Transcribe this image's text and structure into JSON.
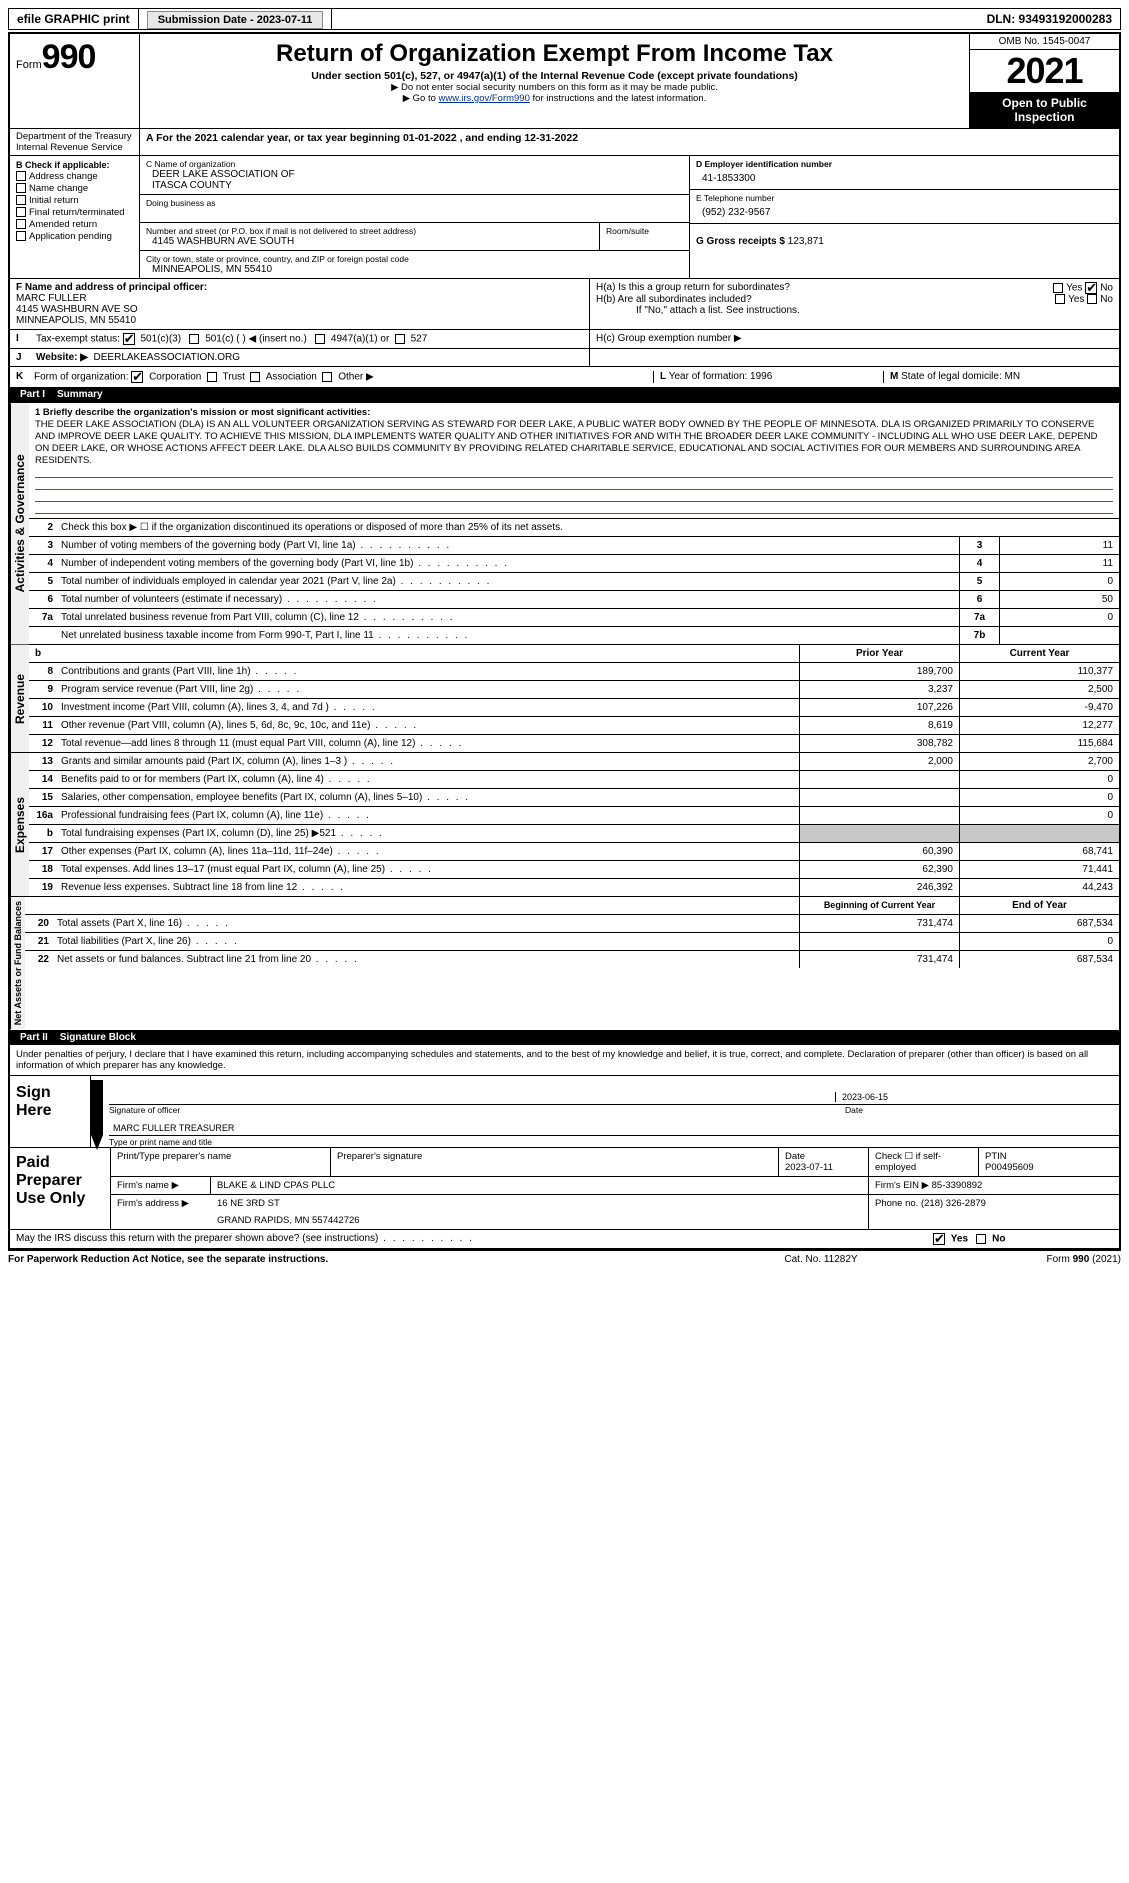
{
  "topbar": {
    "efile": "efile GRAPHIC print",
    "submission_label": "Submission Date - 2023-07-11",
    "dln": "DLN: 93493192000283"
  },
  "header": {
    "form_label": "Form",
    "form_number": "990",
    "title": "Return of Organization Exempt From Income Tax",
    "subtitle": "Under section 501(c), 527, or 4947(a)(1) of the Internal Revenue Code (except private foundations)",
    "note1": "▶ Do not enter social security numbers on this form as it may be made public.",
    "note2_pre": "▶ Go to ",
    "note2_link": "www.irs.gov/Form990",
    "note2_post": " for instructions and the latest information.",
    "omb": "OMB No. 1545-0047",
    "year": "2021",
    "open": "Open to Public Inspection",
    "dept": "Department of the Treasury",
    "irs": "Internal Revenue Service"
  },
  "line_a": "A For the 2021 calendar year, or tax year beginning 01-01-2022   , and ending 12-31-2022",
  "box_b": {
    "header": "B Check if applicable:",
    "items": [
      "Address change",
      "Name change",
      "Initial return",
      "Final return/terminated",
      "Amended return",
      "Application pending"
    ]
  },
  "box_c": {
    "label": "C Name of organization",
    "name1": "DEER LAKE ASSOCIATION OF",
    "name2": "ITASCA COUNTY",
    "dba_label": "Doing business as",
    "street_label": "Number and street (or P.O. box if mail is not delivered to street address)",
    "room_label": "Room/suite",
    "street": "4145 WASHBURN AVE SOUTH",
    "city_label": "City or town, state or province, country, and ZIP or foreign postal code",
    "city": "MINNEAPOLIS, MN  55410"
  },
  "box_d": {
    "label": "D Employer identification number",
    "value": "41-1853300"
  },
  "box_e": {
    "label": "E Telephone number",
    "value": "(952) 232-9567"
  },
  "box_g": {
    "label": "G Gross receipts $",
    "value": "123,871"
  },
  "box_f": {
    "label": "F  Name and address of principal officer:",
    "name": "MARC FULLER",
    "street": "4145 WASHBURN AVE SO",
    "city": "MINNEAPOLIS, MN  55410"
  },
  "box_h": {
    "a": "H(a)  Is this a group return for subordinates?",
    "b": "H(b)  Are all subordinates included?",
    "b_note": "If \"No,\" attach a list. See instructions.",
    "c": "H(c)  Group exemption number ▶",
    "yes": "Yes",
    "no": "No"
  },
  "line_i": {
    "label": "I",
    "text": "Tax-exempt status:",
    "opts": [
      "501(c)(3)",
      "501(c) (  ) ◀ (insert no.)",
      "4947(a)(1) or",
      "527"
    ]
  },
  "line_j": {
    "label": "J",
    "text": "Website: ▶",
    "value": "DEERLAKEASSOCIATION.ORG"
  },
  "line_k": {
    "label": "K",
    "text": "Form of organization:",
    "opts": [
      "Corporation",
      "Trust",
      "Association",
      "Other ▶"
    ]
  },
  "line_l": {
    "label": "L",
    "text": "Year of formation: 1996"
  },
  "line_m": {
    "label": "M",
    "text": "State of legal domicile: MN"
  },
  "part1": {
    "num": "Part I",
    "title": "Summary"
  },
  "mission": {
    "lead": "1  Briefly describe the organization's mission or most significant activities:",
    "text": "THE DEER LAKE ASSOCIATION (DLA) IS AN ALL VOLUNTEER ORGANIZATION SERVING AS STEWARD FOR DEER LAKE, A PUBLIC WATER BODY OWNED BY THE PEOPLE OF MINNESOTA. DLA IS ORGANIZED PRIMARILY TO CONSERVE AND IMPROVE DEER LAKE QUALITY. TO ACHIEVE THIS MISSION, DLA IMPLEMENTS WATER QUALITY AND OTHER INITIATIVES FOR AND WITH THE BROADER DEER LAKE COMMUNITY - INCLUDING ALL WHO USE DEER LAKE, DEPEND ON DEER LAKE, OR WHOSE ACTIONS AFFECT DEER LAKE. DLA ALSO BUILDS COMMUNITY BY PROVIDING RELATED CHARITABLE SERVICE, EDUCATIONAL AND SOCIAL ACTIVITIES FOR OUR MEMBERS AND SURROUNDING AREA RESIDENTS."
  },
  "summary": {
    "side_labels": [
      "Activities & Governance",
      "Revenue",
      "Expenses",
      "Net Assets or Fund Balances"
    ],
    "line2": "Check this box ▶ ☐ if the organization discontinued its operations or disposed of more than 25% of its net assets.",
    "rows_single": [
      {
        "n": "3",
        "d": "Number of voting members of the governing body (Part VI, line 1a)",
        "box": "3",
        "v": "11"
      },
      {
        "n": "4",
        "d": "Number of independent voting members of the governing body (Part VI, line 1b)",
        "box": "4",
        "v": "11"
      },
      {
        "n": "5",
        "d": "Total number of individuals employed in calendar year 2021 (Part V, line 2a)",
        "box": "5",
        "v": "0"
      },
      {
        "n": "6",
        "d": "Total number of volunteers (estimate if necessary)",
        "box": "6",
        "v": "50"
      },
      {
        "n": "7a",
        "d": "Total unrelated business revenue from Part VIII, column (C), line 12",
        "box": "7a",
        "v": "0"
      },
      {
        "n": "",
        "d": "Net unrelated business taxable income from Form 990-T, Part I, line 11",
        "box": "7b",
        "v": ""
      }
    ],
    "col_headers": {
      "b": "b",
      "prior": "Prior Year",
      "current": "Current Year"
    },
    "rows_revenue": [
      {
        "n": "8",
        "d": "Contributions and grants (Part VIII, line 1h)",
        "p": "189,700",
        "c": "110,377"
      },
      {
        "n": "9",
        "d": "Program service revenue (Part VIII, line 2g)",
        "p": "3,237",
        "c": "2,500"
      },
      {
        "n": "10",
        "d": "Investment income (Part VIII, column (A), lines 3, 4, and 7d )",
        "p": "107,226",
        "c": "-9,470"
      },
      {
        "n": "11",
        "d": "Other revenue (Part VIII, column (A), lines 5, 6d, 8c, 9c, 10c, and 11e)",
        "p": "8,619",
        "c": "12,277"
      },
      {
        "n": "12",
        "d": "Total revenue—add lines 8 through 11 (must equal Part VIII, column (A), line 12)",
        "p": "308,782",
        "c": "115,684"
      }
    ],
    "rows_expenses": [
      {
        "n": "13",
        "d": "Grants and similar amounts paid (Part IX, column (A), lines 1–3 )",
        "p": "2,000",
        "c": "2,700"
      },
      {
        "n": "14",
        "d": "Benefits paid to or for members (Part IX, column (A), line 4)",
        "p": "",
        "c": "0"
      },
      {
        "n": "15",
        "d": "Salaries, other compensation, employee benefits (Part IX, column (A), lines 5–10)",
        "p": "",
        "c": "0"
      },
      {
        "n": "16a",
        "d": "Professional fundraising fees (Part IX, column (A), line 11e)",
        "p": "",
        "c": "0"
      },
      {
        "n": "b",
        "d": "Total fundraising expenses (Part IX, column (D), line 25) ▶521",
        "p": "GRAY",
        "c": "GRAY"
      },
      {
        "n": "17",
        "d": "Other expenses (Part IX, column (A), lines 11a–11d, 11f–24e)",
        "p": "60,390",
        "c": "68,741"
      },
      {
        "n": "18",
        "d": "Total expenses. Add lines 13–17 (must equal Part IX, column (A), line 25)",
        "p": "62,390",
        "c": "71,441"
      },
      {
        "n": "19",
        "d": "Revenue less expenses. Subtract line 18 from line 12",
        "p": "246,392",
        "c": "44,243"
      }
    ],
    "net_headers": {
      "b": "Beginning of Current Year",
      "e": "End of Year"
    },
    "rows_net": [
      {
        "n": "20",
        "d": "Total assets (Part X, line 16)",
        "p": "731,474",
        "c": "687,534"
      },
      {
        "n": "21",
        "d": "Total liabilities (Part X, line 26)",
        "p": "",
        "c": "0"
      },
      {
        "n": "22",
        "d": "Net assets or fund balances. Subtract line 21 from line 20",
        "p": "731,474",
        "c": "687,534"
      }
    ]
  },
  "part2": {
    "num": "Part II",
    "title": "Signature Block"
  },
  "sig": {
    "perjury": "Under penalties of perjury, I declare that I have examined this return, including accompanying schedules and statements, and to the best of my knowledge and belief, it is true, correct, and complete. Declaration of preparer (other than officer) is based on all information of which preparer has any knowledge.",
    "sign_here": "Sign Here",
    "sig_label": "Signature of officer",
    "date_label": "Date",
    "date": "2023-06-15",
    "officer": "MARC FULLER  TREASURER",
    "officer_label": "Type or print name and title"
  },
  "prep": {
    "label": "Paid Preparer Use Only",
    "h1": "Print/Type preparer's name",
    "h2": "Preparer's signature",
    "h3": "Date",
    "h3v": "2023-07-11",
    "h4": "Check ☐ if self-employed",
    "h5": "PTIN",
    "h5v": "P00495609",
    "firm_name_l": "Firm's name    ▶",
    "firm_name": "BLAKE & LIND CPAS PLLC",
    "firm_ein_l": "Firm's EIN ▶",
    "firm_ein": "85-3390892",
    "firm_addr_l": "Firm's address ▶",
    "firm_addr1": "16 NE 3RD ST",
    "firm_addr2": "GRAND RAPIDS, MN  557442726",
    "phone_l": "Phone no.",
    "phone": "(218) 326-2879"
  },
  "discuss": {
    "text": "May the IRS discuss this return with the preparer shown above? (see instructions)",
    "yes": "Yes",
    "no": "No"
  },
  "footer": {
    "l": "For Paperwork Reduction Act Notice, see the separate instructions.",
    "c": "Cat. No. 11282Y",
    "r": "Form 990 (2021)"
  }
}
